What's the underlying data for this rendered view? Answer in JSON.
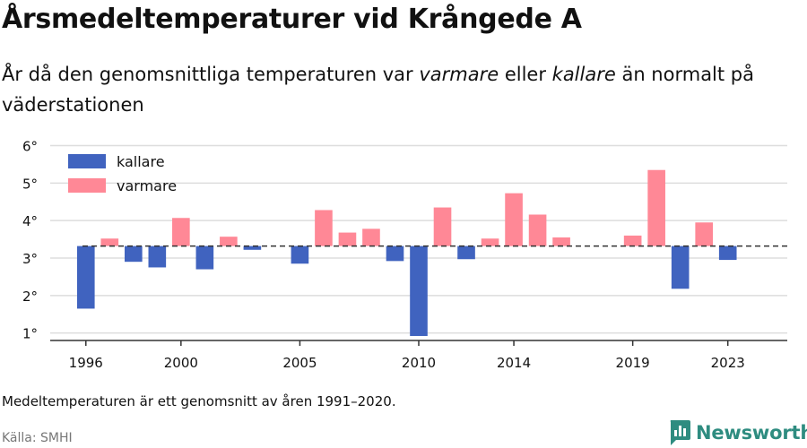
{
  "title": "Årsmedeltemperaturer vid Krångede A",
  "subtitle": {
    "part1": "År då den genomsnittliga temperaturen var ",
    "warm_word": "varmare",
    "part2": " eller ",
    "cold_word": "kallare",
    "part3": " än normalt på väderstationen"
  },
  "note": "Medeltemperaturen är ett genomsnitt av åren 1991–2020.",
  "source": "Källa: SMHI",
  "brand": {
    "name": "Newsworthy",
    "icon": "newsworthy-logo-icon"
  },
  "colors": {
    "colder": "#4063bf",
    "warmer": "#ff8896",
    "baseline": "#333333",
    "grid": "#dddddd"
  },
  "chart_data": {
    "type": "bar",
    "baseline": 3.32,
    "ylim": [
      0.8,
      6.3
    ],
    "xlim": [
      1994.5,
      2025.5
    ],
    "yticks": [
      1,
      2,
      3,
      4,
      5,
      6
    ],
    "ytick_labels": [
      "1°",
      "2°",
      "3°",
      "4°",
      "5°",
      "6°"
    ],
    "xticks": [
      1996,
      2000,
      2005,
      2010,
      2014,
      2019,
      2023
    ],
    "xtick_labels": [
      "1996",
      "2000",
      "2005",
      "2010",
      "2014",
      "2019",
      "2023"
    ],
    "legend": {
      "position": "top-left",
      "items": [
        {
          "key": "colder",
          "label": "kallare"
        },
        {
          "key": "warmer",
          "label": "varmare"
        }
      ]
    },
    "grid": true,
    "points": [
      {
        "year": 1996,
        "value": 1.65
      },
      {
        "year": 1997,
        "value": 3.52
      },
      {
        "year": 1998,
        "value": 2.9
      },
      {
        "year": 1999,
        "value": 2.75
      },
      {
        "year": 2000,
        "value": 4.07
      },
      {
        "year": 2001,
        "value": 2.7
      },
      {
        "year": 2002,
        "value": 3.57
      },
      {
        "year": 2003,
        "value": 3.22
      },
      {
        "year": 2005,
        "value": 2.85
      },
      {
        "year": 2006,
        "value": 4.28
      },
      {
        "year": 2007,
        "value": 3.68
      },
      {
        "year": 2008,
        "value": 3.78
      },
      {
        "year": 2009,
        "value": 2.92
      },
      {
        "year": 2010,
        "value": 0.92
      },
      {
        "year": 2011,
        "value": 4.35
      },
      {
        "year": 2012,
        "value": 2.97
      },
      {
        "year": 2013,
        "value": 3.52
      },
      {
        "year": 2014,
        "value": 4.73
      },
      {
        "year": 2015,
        "value": 4.16
      },
      {
        "year": 2016,
        "value": 3.55
      },
      {
        "year": 2019,
        "value": 3.6
      },
      {
        "year": 2020,
        "value": 5.35
      },
      {
        "year": 2021,
        "value": 2.18
      },
      {
        "year": 2022,
        "value": 3.95
      },
      {
        "year": 2023,
        "value": 2.95
      }
    ]
  }
}
